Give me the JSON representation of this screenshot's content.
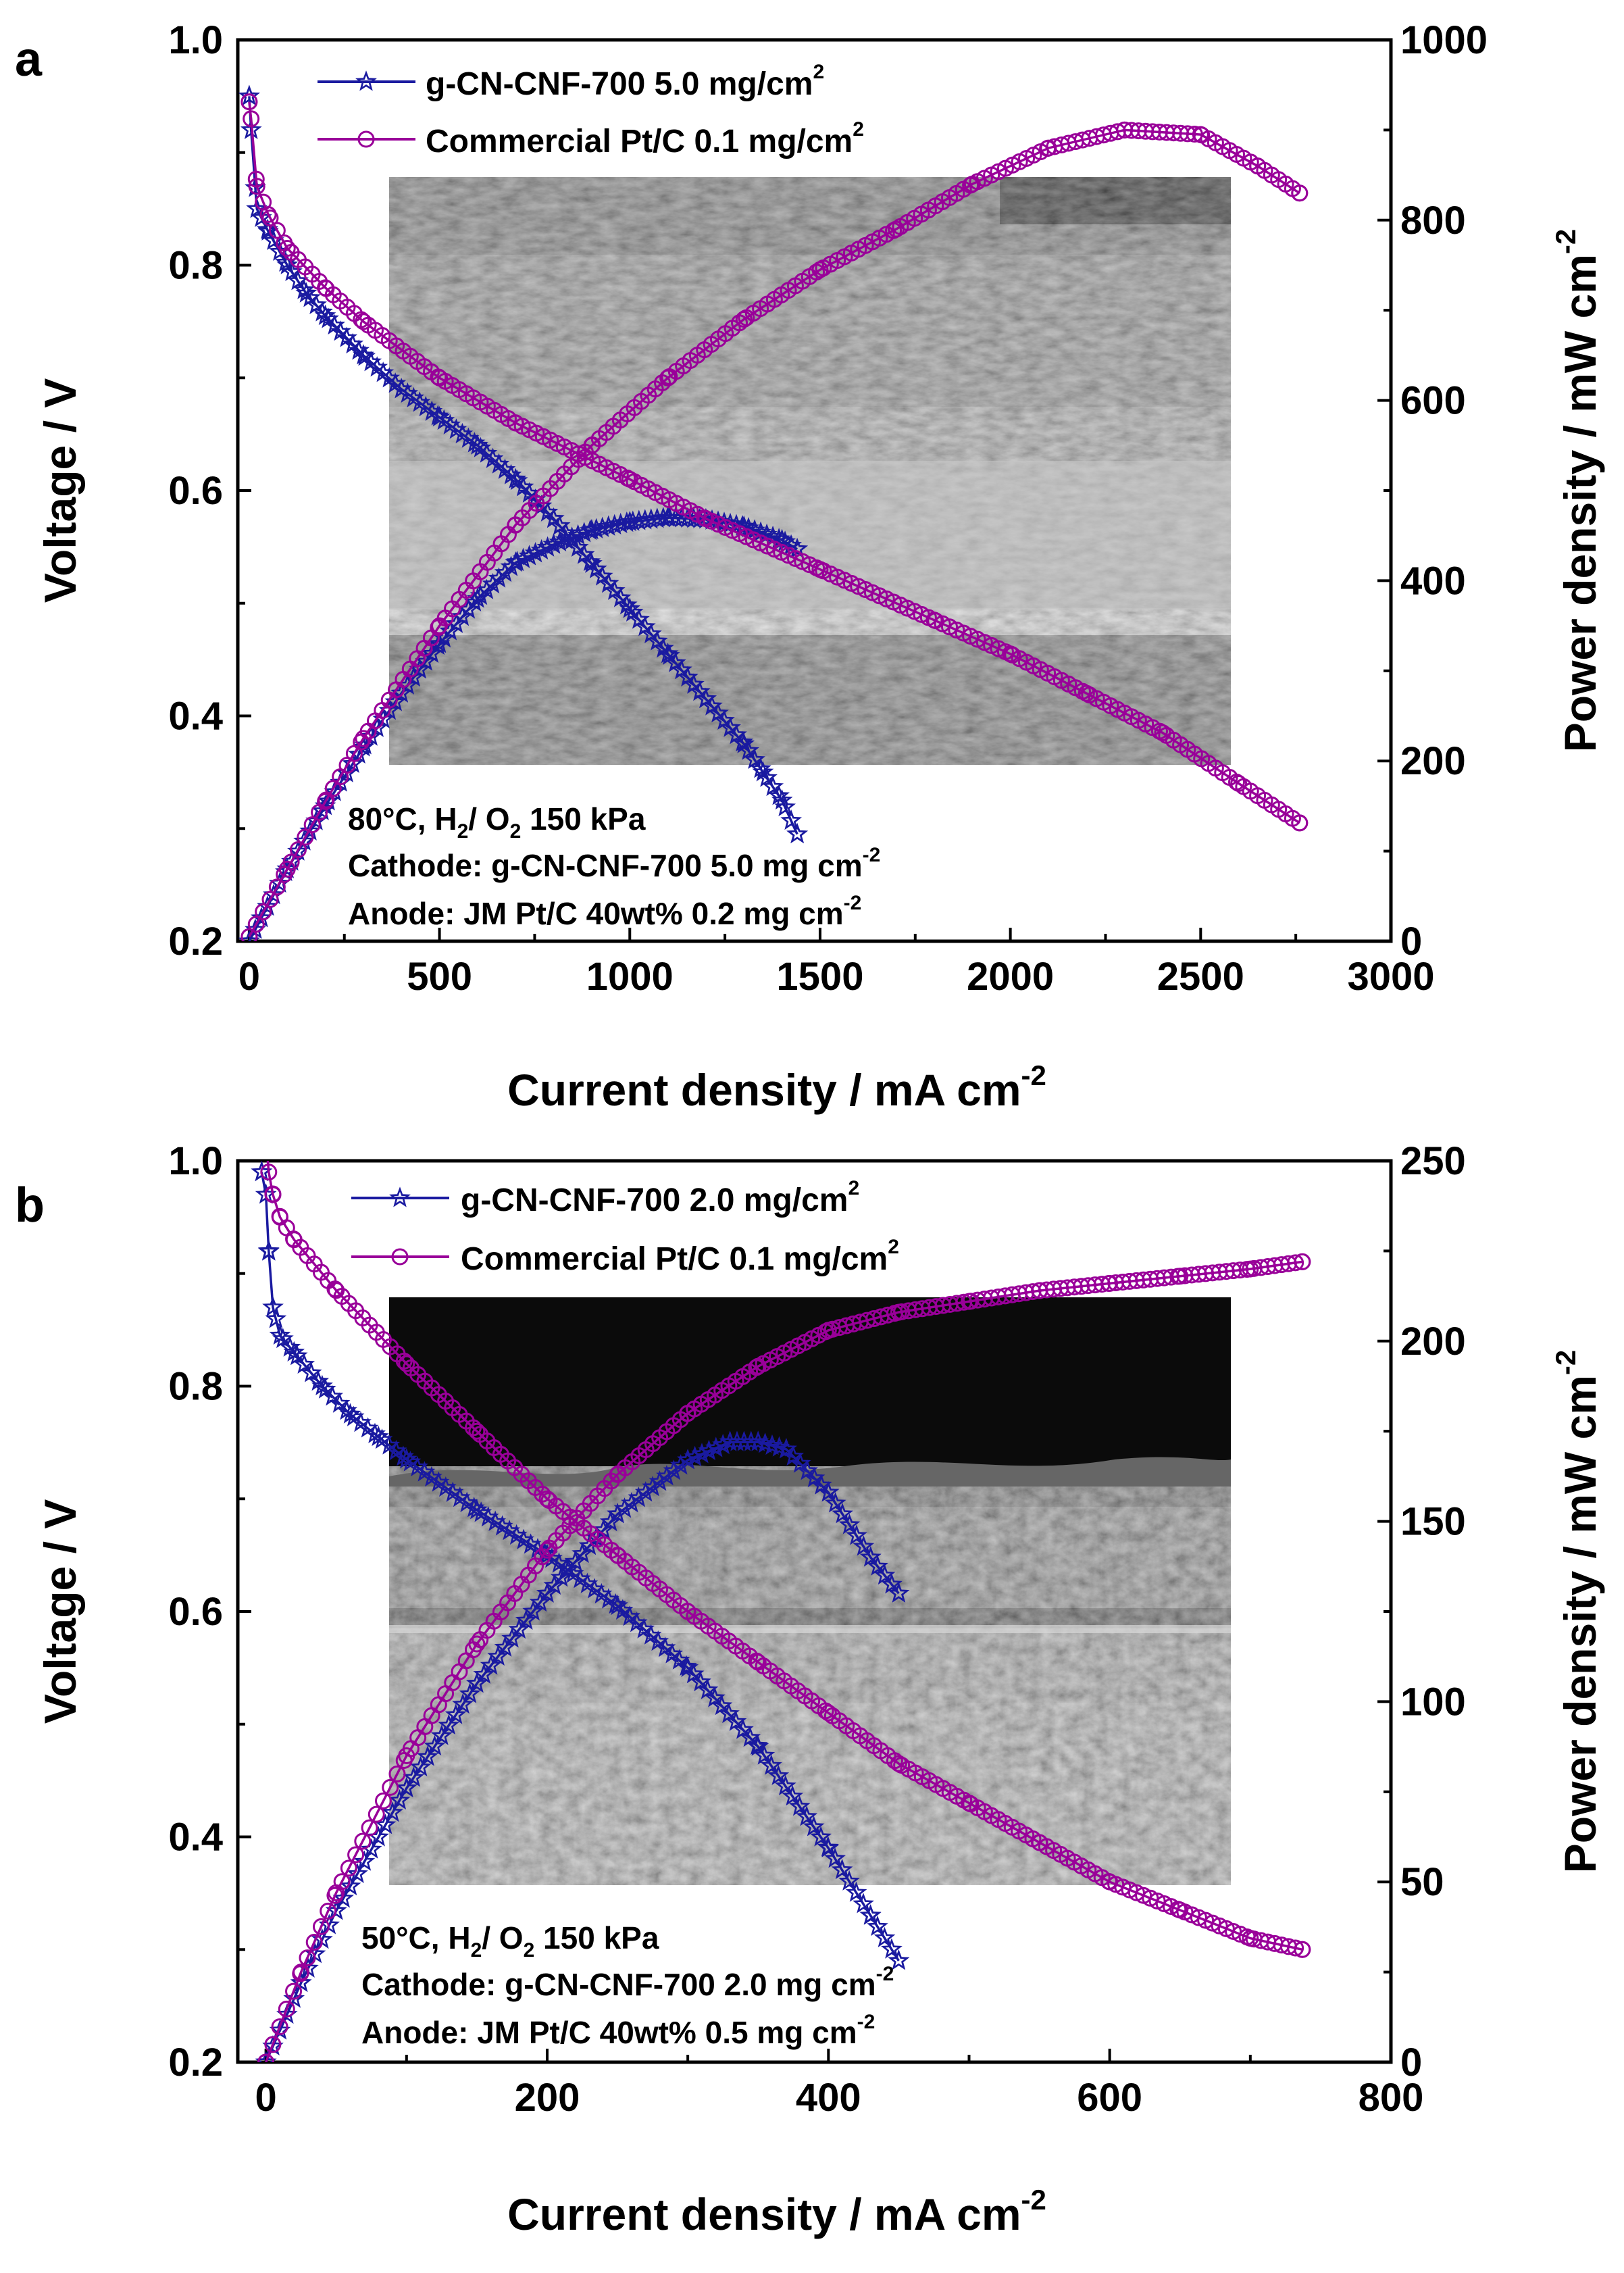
{
  "panels": [
    {
      "label": "a",
      "title": "",
      "xlabel": "Current density / mA cm",
      "xlabel_sup": "-2",
      "ylabel": "Voltage / V",
      "y2label": "Power density / mW cm",
      "y2label_sup": "-2",
      "xlim": [
        -30,
        3000
      ],
      "ylim": [
        0.2,
        1.0
      ],
      "y2lim": [
        0,
        1000
      ],
      "xticks": [
        0,
        500,
        1000,
        1500,
        2000,
        2500,
        3000
      ],
      "yticks": [
        0.2,
        0.4,
        0.6,
        0.8,
        1.0
      ],
      "y2ticks": [
        0,
        200,
        400,
        600,
        800,
        1000
      ],
      "xtick_labels": [
        "0",
        "500",
        "1000",
        "1500",
        "2000",
        "2500",
        "3000"
      ],
      "ytick_labels": [
        "0.2",
        "0.4",
        "0.6",
        "0.8",
        "1.0"
      ],
      "y2tick_labels": [
        "0",
        "200",
        "400",
        "600",
        "800",
        "1000"
      ],
      "inset_image": "SEM cross-section of membrane electrode assembly",
      "legend": [
        {
          "text": "g-CN-CNF-700 5.0 mg/cm",
          "sup": "2",
          "color": "#1a1aa0",
          "marker": "star"
        },
        {
          "text": "Commercial Pt/C 0.1 mg/cm",
          "sup": "2",
          "color": "#990099",
          "marker": "circle"
        }
      ],
      "conditions": [
        [
          {
            "t": "80°C, H"
          },
          {
            "t": "2",
            "s": "sub"
          },
          {
            "t": "/ O"
          },
          {
            "t": "2",
            "s": "sub"
          },
          {
            "t": " 150 kPa"
          }
        ],
        [
          {
            "t": "Cathode: g-CN-CNF-700 5.0 mg cm"
          },
          {
            "t": "-2",
            "s": "sup"
          }
        ],
        [
          {
            "t": "Anode: JM Pt/C 40wt% 0.2 mg cm"
          },
          {
            "t": "-2",
            "s": "sup"
          }
        ]
      ],
      "series": [
        {
          "name": "g-CN-CNF-700 5.0 mg/cm2 voltage",
          "axis": "left",
          "marker": "star",
          "color": "#1a1aa0",
          "x": [
            0,
            5,
            20,
            50,
            100,
            150,
            200,
            300,
            400,
            500,
            600,
            700,
            800,
            900,
            1000,
            1100,
            1200,
            1300,
            1350,
            1400,
            1440
          ],
          "y": [
            0.95,
            0.92,
            0.85,
            0.83,
            0.8,
            0.775,
            0.755,
            0.72,
            0.69,
            0.665,
            0.64,
            0.61,
            0.575,
            0.535,
            0.495,
            0.455,
            0.415,
            0.375,
            0.35,
            0.325,
            0.295
          ]
        },
        {
          "name": "g-CN-CNF-700 5.0 mg/cm2 power density",
          "axis": "right",
          "marker": "star",
          "color": "#1a1aa0",
          "x": [
            0,
            100,
            200,
            300,
            400,
            500,
            600,
            700,
            800,
            900,
            1000,
            1100,
            1200,
            1300,
            1400,
            1440
          ],
          "y": [
            0,
            80,
            150,
            215,
            275,
            330,
            380,
            420,
            440,
            456,
            465,
            470,
            468,
            460,
            445,
            435
          ]
        },
        {
          "name": "Commercial Pt/C 0.1 mg/cm2 voltage",
          "axis": "left",
          "marker": "circle",
          "color": "#990099",
          "x": [
            0,
            5,
            20,
            50,
            100,
            200,
            300,
            500,
            700,
            1000,
            1200,
            1500,
            1800,
            2000,
            2200,
            2400,
            2600,
            2760
          ],
          "y": [
            0.945,
            0.93,
            0.87,
            0.845,
            0.815,
            0.78,
            0.75,
            0.7,
            0.66,
            0.61,
            0.575,
            0.53,
            0.485,
            0.455,
            0.42,
            0.385,
            0.34,
            0.305
          ]
        },
        {
          "name": "Commercial Pt/C 0.1 mg/cm2 power density",
          "axis": "right",
          "marker": "circle",
          "color": "#990099",
          "x": [
            0,
            100,
            200,
            300,
            500,
            700,
            900,
            1100,
            1300,
            1500,
            1700,
            1900,
            2100,
            2300,
            2500,
            2650,
            2760
          ],
          "y": [
            5,
            80,
            155,
            225,
            350,
            462,
            550,
            625,
            690,
            745,
            790,
            840,
            880,
            900,
            895,
            860,
            830
          ]
        }
      ]
    },
    {
      "label": "b",
      "title": "",
      "xlabel": "Current density / mA cm",
      "xlabel_sup": "-2",
      "ylabel": "Voltage / V",
      "y2label": "Power density / mW cm",
      "y2label_sup": "-2",
      "xlim": [
        -20,
        800
      ],
      "ylim": [
        0.2,
        1.0
      ],
      "y2lim": [
        0,
        250
      ],
      "xticks": [
        0,
        200,
        400,
        600,
        800
      ],
      "yticks": [
        0.2,
        0.4,
        0.6,
        0.8,
        1.0
      ],
      "y2ticks": [
        0,
        50,
        100,
        150,
        200,
        250
      ],
      "xtick_labels": [
        "0",
        "200",
        "400",
        "600",
        "800"
      ],
      "ytick_labels": [
        "0.2",
        "0.4",
        "0.6",
        "0.8",
        "1.0"
      ],
      "y2tick_labels": [
        "0",
        "50",
        "100",
        "150",
        "200",
        "250"
      ],
      "inset_image": "SEM cross-section of membrane electrode assembly",
      "legend": [
        {
          "text": "g-CN-CNF-700 2.0 mg/cm",
          "sup": "2",
          "color": "#1a1aa0",
          "marker": "star"
        },
        {
          "text": "Commercial Pt/C 0.1 mg/cm",
          "sup": "2",
          "color": "#990099",
          "marker": "circle"
        }
      ],
      "conditions": [
        [
          {
            "t": "50°C, H"
          },
          {
            "t": "2",
            "s": "sub"
          },
          {
            "t": "/ O"
          },
          {
            "t": "2",
            "s": "sub"
          },
          {
            "t": " 150 kPa"
          }
        ],
        [
          {
            "t": "Cathode: g-CN-CNF-700 2.0 mg cm"
          },
          {
            "t": "-2",
            "s": "sup"
          }
        ],
        [
          {
            "t": "Anode: JM Pt/C 40wt% 0.5 mg cm"
          },
          {
            "t": "-2",
            "s": "sup"
          }
        ]
      ],
      "series": [
        {
          "name": "g-CN-CNF-700 2.0 mg/cm2 voltage",
          "axis": "left",
          "marker": "star",
          "color": "#1a1aa0",
          "x": [
            -3,
            0,
            2,
            5,
            10,
            20,
            40,
            60,
            80,
            100,
            150,
            200,
            250,
            300,
            350,
            400,
            430,
            450
          ],
          "y": [
            0.99,
            0.97,
            0.92,
            0.87,
            0.845,
            0.83,
            0.8,
            0.775,
            0.755,
            0.735,
            0.69,
            0.65,
            0.605,
            0.55,
            0.48,
            0.39,
            0.33,
            0.29
          ]
        },
        {
          "name": "g-CN-CNF-700 2.0 mg/cm2 power density",
          "axis": "right",
          "marker": "star",
          "color": "#1a1aa0",
          "x": [
            0,
            25,
            50,
            100,
            150,
            200,
            250,
            300,
            330,
            350,
            370,
            400,
            430,
            450
          ],
          "y": [
            0,
            22,
            42,
            76,
            105,
            130,
            152,
            167,
            172,
            172,
            170,
            158,
            140,
            130
          ]
        },
        {
          "name": "Commercial Pt/C 0.1 mg/cm2 voltage",
          "axis": "left",
          "marker": "circle",
          "color": "#990099",
          "x": [
            0,
            2,
            5,
            10,
            20,
            50,
            100,
            150,
            200,
            250,
            300,
            350,
            400,
            450,
            500,
            550,
            600,
            650,
            700,
            737
          ],
          "y": [
            1.02,
            0.99,
            0.97,
            0.95,
            0.93,
            0.885,
            0.82,
            0.76,
            0.7,
            0.65,
            0.6,
            0.555,
            0.51,
            0.465,
            0.43,
            0.395,
            0.36,
            0.335,
            0.31,
            0.3
          ]
        },
        {
          "name": "Commercial Pt/C 0.1 mg/cm2 power density",
          "axis": "right",
          "marker": "circle",
          "color": "#990099",
          "x": [
            0,
            25,
            50,
            100,
            150,
            200,
            250,
            300,
            350,
            400,
            450,
            500,
            550,
            600,
            650,
            700,
            737
          ],
          "y": [
            0,
            25,
            47,
            85,
            116,
            142,
            163,
            180,
            193,
            203,
            208,
            211,
            214,
            216,
            218,
            220,
            222
          ]
        }
      ]
    }
  ]
}
